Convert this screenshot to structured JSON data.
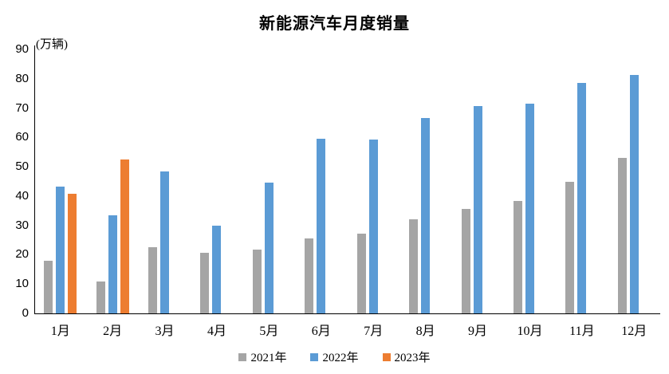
{
  "title": "新能源汽车月度销量",
  "chart_data": {
    "type": "bar",
    "title": "新能源汽车月度销量",
    "ylabel": "(万辆)",
    "xlabel": "",
    "ylim": [
      0,
      90
    ],
    "ytick_step": 10,
    "grid": false,
    "legend_position": "bottom",
    "categories": [
      "1月",
      "2月",
      "3月",
      "4月",
      "5月",
      "6月",
      "7月",
      "8月",
      "9月",
      "10月",
      "11月",
      "12月"
    ],
    "series": [
      {
        "name": "2021年",
        "color": "#A5A5A5",
        "values": [
          17.9,
          11.0,
          22.6,
          20.6,
          21.7,
          25.6,
          27.1,
          32.1,
          35.7,
          38.3,
          45.0,
          53.1
        ]
      },
      {
        "name": "2022年",
        "color": "#5B9BD5",
        "values": [
          43.1,
          33.4,
          48.4,
          29.9,
          44.7,
          59.6,
          59.3,
          66.6,
          70.8,
          71.4,
          78.6,
          81.4
        ]
      },
      {
        "name": "2023年",
        "color": "#ED7D31",
        "values": [
          40.8,
          52.5,
          null,
          null,
          null,
          null,
          null,
          null,
          null,
          null,
          null,
          null
        ]
      }
    ]
  }
}
